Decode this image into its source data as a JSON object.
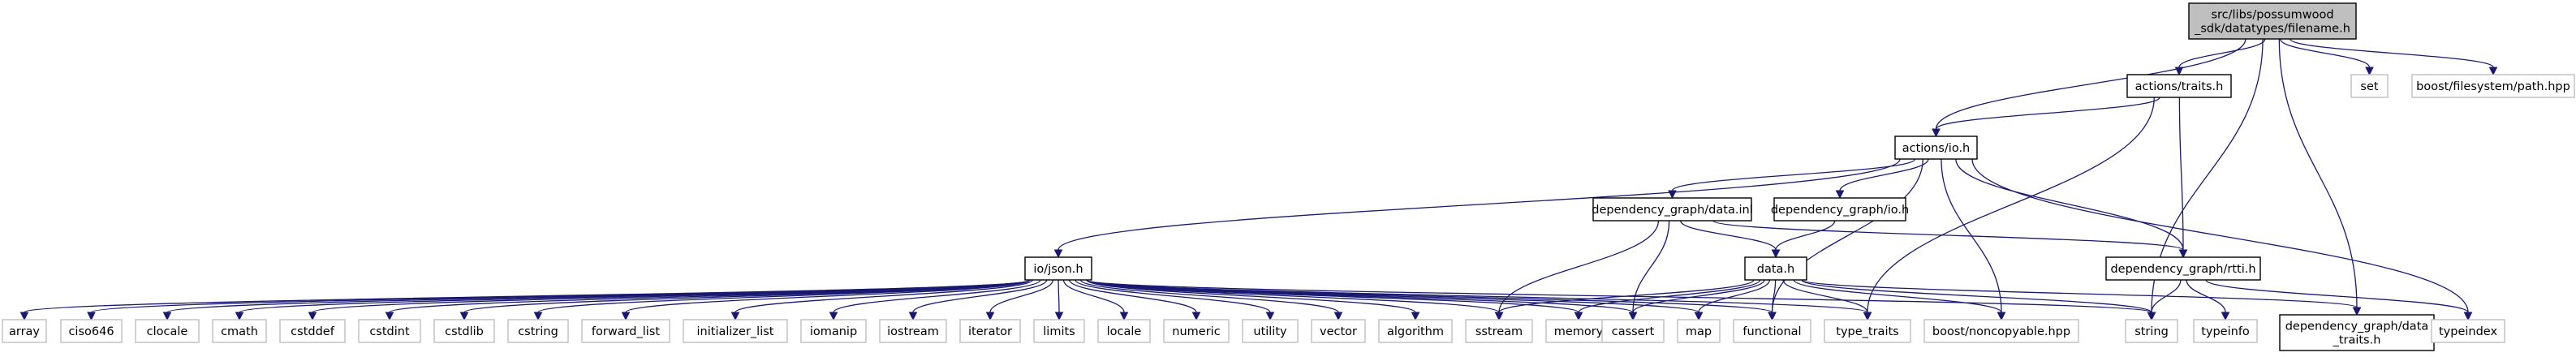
{
  "diagram": {
    "type": "include-dependency-graph",
    "nodes": [
      {
        "id": "filename",
        "lines": [
          "src/libs/possumwood",
          "_sdk/datatypes/filename.h"
        ],
        "style": "focus"
      },
      {
        "id": "traits",
        "lines": [
          "actions/traits.h"
        ],
        "style": "link"
      },
      {
        "id": "set",
        "lines": [
          "set"
        ],
        "style": "ext"
      },
      {
        "id": "boostpath",
        "lines": [
          "boost/filesystem/path.hpp"
        ],
        "style": "ext"
      },
      {
        "id": "io",
        "lines": [
          "actions/io.h"
        ],
        "style": "link"
      },
      {
        "id": "datainl",
        "lines": [
          "dependency_graph/data.inl"
        ],
        "style": "link"
      },
      {
        "id": "dgio",
        "lines": [
          "dependency_graph/io.h"
        ],
        "style": "link"
      },
      {
        "id": "json",
        "lines": [
          "io/json.h"
        ],
        "style": "link"
      },
      {
        "id": "datah",
        "lines": [
          "data.h"
        ],
        "style": "link"
      },
      {
        "id": "rtti",
        "lines": [
          "dependency_graph/rtti.h"
        ],
        "style": "link"
      },
      {
        "id": "array",
        "lines": [
          "array"
        ],
        "style": "ext"
      },
      {
        "id": "ciso646",
        "lines": [
          "ciso646"
        ],
        "style": "ext"
      },
      {
        "id": "clocale",
        "lines": [
          "clocale"
        ],
        "style": "ext"
      },
      {
        "id": "cmath",
        "lines": [
          "cmath"
        ],
        "style": "ext"
      },
      {
        "id": "cstddef",
        "lines": [
          "cstddef"
        ],
        "style": "ext"
      },
      {
        "id": "cstdint",
        "lines": [
          "cstdint"
        ],
        "style": "ext"
      },
      {
        "id": "cstdlib",
        "lines": [
          "cstdlib"
        ],
        "style": "ext"
      },
      {
        "id": "cstring",
        "lines": [
          "cstring"
        ],
        "style": "ext"
      },
      {
        "id": "forward_list",
        "lines": [
          "forward_list"
        ],
        "style": "ext"
      },
      {
        "id": "initializer_list",
        "lines": [
          "initializer_list"
        ],
        "style": "ext"
      },
      {
        "id": "iomanip",
        "lines": [
          "iomanip"
        ],
        "style": "ext"
      },
      {
        "id": "iostream",
        "lines": [
          "iostream"
        ],
        "style": "ext"
      },
      {
        "id": "iterator",
        "lines": [
          "iterator"
        ],
        "style": "ext"
      },
      {
        "id": "limits",
        "lines": [
          "limits"
        ],
        "style": "ext"
      },
      {
        "id": "locale",
        "lines": [
          "locale"
        ],
        "style": "ext"
      },
      {
        "id": "numeric",
        "lines": [
          "numeric"
        ],
        "style": "ext"
      },
      {
        "id": "utility",
        "lines": [
          "utility"
        ],
        "style": "ext"
      },
      {
        "id": "vector",
        "lines": [
          "vector"
        ],
        "style": "ext"
      },
      {
        "id": "algorithm",
        "lines": [
          "algorithm"
        ],
        "style": "ext"
      },
      {
        "id": "sstream",
        "lines": [
          "sstream"
        ],
        "style": "ext"
      },
      {
        "id": "memory",
        "lines": [
          "memory"
        ],
        "style": "ext"
      },
      {
        "id": "cassert",
        "lines": [
          "cassert"
        ],
        "style": "ext"
      },
      {
        "id": "map",
        "lines": [
          "map"
        ],
        "style": "ext"
      },
      {
        "id": "functional",
        "lines": [
          "functional"
        ],
        "style": "ext"
      },
      {
        "id": "type_traits",
        "lines": [
          "type_traits"
        ],
        "style": "ext"
      },
      {
        "id": "noncopyable",
        "lines": [
          "boost/noncopyable.hpp"
        ],
        "style": "ext"
      },
      {
        "id": "string",
        "lines": [
          "string"
        ],
        "style": "ext"
      },
      {
        "id": "typeinfo",
        "lines": [
          "typeinfo"
        ],
        "style": "ext"
      },
      {
        "id": "data_traits",
        "lines": [
          "dependency_graph/data",
          "_traits.h"
        ],
        "style": "link"
      },
      {
        "id": "typeindex",
        "lines": [
          "typeindex"
        ],
        "style": "ext"
      }
    ],
    "edges": [
      [
        "filename",
        "traits"
      ],
      [
        "filename",
        "set"
      ],
      [
        "filename",
        "boostpath"
      ],
      [
        "filename",
        "io"
      ],
      [
        "filename",
        "string"
      ],
      [
        "filename",
        "data_traits"
      ],
      [
        "traits",
        "io"
      ],
      [
        "traits",
        "rtti"
      ],
      [
        "traits",
        "type_traits"
      ],
      [
        "io",
        "datainl"
      ],
      [
        "io",
        "dgio"
      ],
      [
        "io",
        "json"
      ],
      [
        "io",
        "rtti"
      ],
      [
        "io",
        "functional"
      ],
      [
        "io",
        "noncopyable"
      ],
      [
        "io",
        "typeindex"
      ],
      [
        "datainl",
        "datah"
      ],
      [
        "datainl",
        "rtti"
      ],
      [
        "datainl",
        "sstream"
      ],
      [
        "datainl",
        "cassert"
      ],
      [
        "dgio",
        "datah"
      ],
      [
        "datah",
        "sstream"
      ],
      [
        "datah",
        "memory"
      ],
      [
        "datah",
        "cassert"
      ],
      [
        "datah",
        "map"
      ],
      [
        "datah",
        "functional"
      ],
      [
        "datah",
        "type_traits"
      ],
      [
        "datah",
        "noncopyable"
      ],
      [
        "datah",
        "data_traits"
      ],
      [
        "datah",
        "string"
      ],
      [
        "rtti",
        "string"
      ],
      [
        "rtti",
        "typeinfo"
      ],
      [
        "rtti",
        "typeindex"
      ],
      [
        "json",
        "array"
      ],
      [
        "json",
        "ciso646"
      ],
      [
        "json",
        "clocale"
      ],
      [
        "json",
        "cmath"
      ],
      [
        "json",
        "cstddef"
      ],
      [
        "json",
        "cstdint"
      ],
      [
        "json",
        "cstdlib"
      ],
      [
        "json",
        "cstring"
      ],
      [
        "json",
        "forward_list"
      ],
      [
        "json",
        "initializer_list"
      ],
      [
        "json",
        "iomanip"
      ],
      [
        "json",
        "iostream"
      ],
      [
        "json",
        "iterator"
      ],
      [
        "json",
        "limits"
      ],
      [
        "json",
        "locale"
      ],
      [
        "json",
        "numeric"
      ],
      [
        "json",
        "utility"
      ],
      [
        "json",
        "vector"
      ],
      [
        "json",
        "algorithm"
      ],
      [
        "json",
        "sstream"
      ],
      [
        "json",
        "memory"
      ],
      [
        "json",
        "cassert"
      ],
      [
        "json",
        "map"
      ],
      [
        "json",
        "functional"
      ],
      [
        "json",
        "type_traits"
      ],
      [
        "json",
        "string"
      ]
    ]
  }
}
